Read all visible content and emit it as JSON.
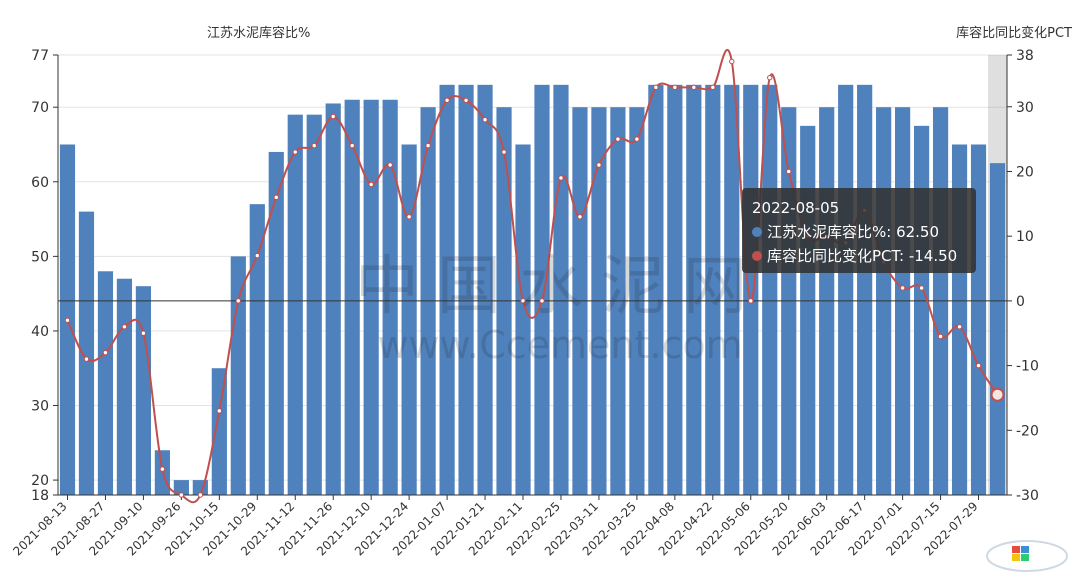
{
  "chart_data": {
    "type": "bar+line",
    "left_axis": {
      "name": "江苏水泥库容比%",
      "min": 18,
      "max": 77,
      "ticks": [
        18,
        20,
        30,
        40,
        50,
        60,
        70,
        77
      ]
    },
    "right_axis": {
      "name": "库容比同比变化PCT",
      "min": -30,
      "max": 38,
      "ticks": [
        -30,
        -20,
        -10,
        0,
        10,
        20,
        30,
        38
      ]
    },
    "x_tick_labels": [
      "2021-08-13",
      "2021-08-27",
      "2021-09-10",
      "2021-09-26",
      "2021-10-15",
      "2021-10-29",
      "2021-11-12",
      "2021-11-26",
      "2021-12-10",
      "2021-12-24",
      "2022-01-07",
      "2022-01-21",
      "2022-02-11",
      "2022-02-25",
      "2022-03-11",
      "2022-03-25",
      "2022-04-08",
      "2022-04-22",
      "2022-05-06",
      "2022-05-20",
      "2022-06-03",
      "2022-06-17",
      "2022-07-01",
      "2022-07-15",
      "2022-07-29"
    ],
    "series": [
      {
        "name": "江苏水泥库容比%",
        "type": "bar",
        "axis": "left",
        "color": "#4f81bd",
        "values": [
          65,
          56,
          48,
          47,
          46,
          24,
          20,
          20,
          35,
          50,
          57,
          64,
          69,
          69,
          70.5,
          71,
          71,
          71,
          65,
          70,
          73,
          73,
          73,
          70,
          65,
          73,
          73,
          70,
          70,
          70,
          70,
          73,
          73,
          73,
          73,
          73,
          73,
          73,
          70,
          67.5,
          70,
          73,
          73,
          70,
          70,
          67.5,
          70,
          65,
          65,
          62.5
        ]
      },
      {
        "name": "库容比同比变化PCT",
        "type": "line",
        "axis": "right",
        "color": "#c0504d",
        "values": [
          -3,
          -9,
          -8,
          -4,
          -5,
          -26,
          -30,
          -30,
          -17,
          0,
          7,
          16,
          23,
          24,
          28.5,
          24,
          18,
          21,
          13,
          24,
          31,
          31,
          28,
          23,
          0,
          0,
          19,
          13,
          21,
          25,
          25,
          33,
          33,
          33,
          33,
          37,
          0,
          34.5,
          20,
          10,
          10,
          9,
          14,
          6,
          2,
          2,
          -5.5,
          -4,
          -10,
          -14.5
        ]
      }
    ],
    "highlight_index": 49,
    "tooltip": {
      "date": "2022-08-05",
      "bar_line": "江苏水泥库容比%: 62.50",
      "line_line": "库容比同比变化PCT: -14.50"
    },
    "watermark": {
      "cn": "中国水泥网",
      "url": "www.Ccement.com"
    },
    "grid": true
  }
}
